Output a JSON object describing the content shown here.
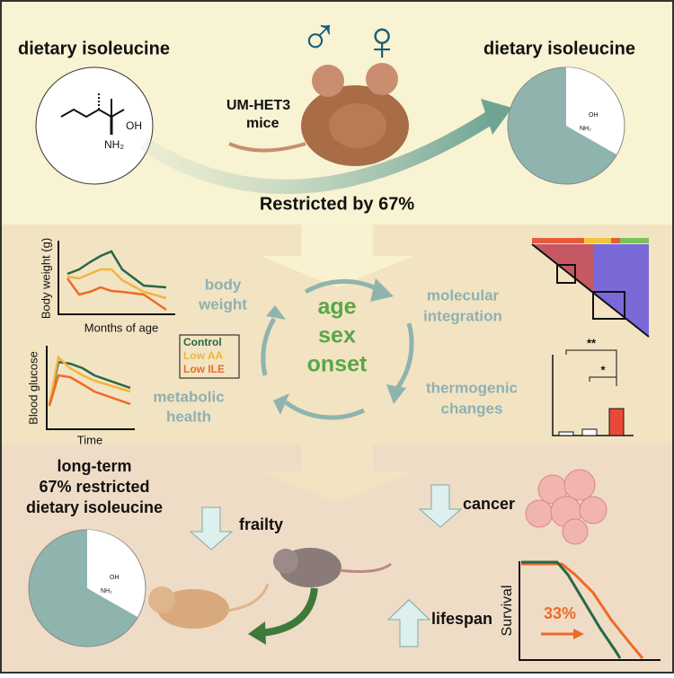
{
  "top": {
    "left_label": "dietary isoleucine",
    "right_label": "dietary isoleucine",
    "male_symbol": "♂",
    "female_symbol": "♀",
    "mouse_label": [
      "UM-HET3",
      "mice"
    ],
    "restriction": "Restricted by 67%"
  },
  "molecule": {
    "oh": "OH",
    "nh2": "NH₂"
  },
  "middle": {
    "body_weight": [
      "body",
      "weight"
    ],
    "molecular": [
      "molecular",
      "integration"
    ],
    "metabolic": [
      "metabolic",
      "health"
    ],
    "thermogenic": [
      "thermogenic",
      "changes"
    ],
    "center": [
      "age",
      "sex",
      "onset"
    ],
    "weight_chart": {
      "y_label": "Body weight (g)",
      "x_label": "Months of age"
    },
    "glucose_chart": {
      "y_label": "Blood glucose",
      "x_label": "Time"
    },
    "legend": [
      "Control",
      "Low AA",
      "Low ILE"
    ],
    "significance": [
      "**",
      "*"
    ]
  },
  "bottom": {
    "summary": [
      "long-term",
      "67% restricted",
      "dietary isoleucine"
    ],
    "frailty": "frailty",
    "cancer": "cancer",
    "lifespan": "lifespan",
    "survival_label": "Survival",
    "gain": "33%"
  }
}
